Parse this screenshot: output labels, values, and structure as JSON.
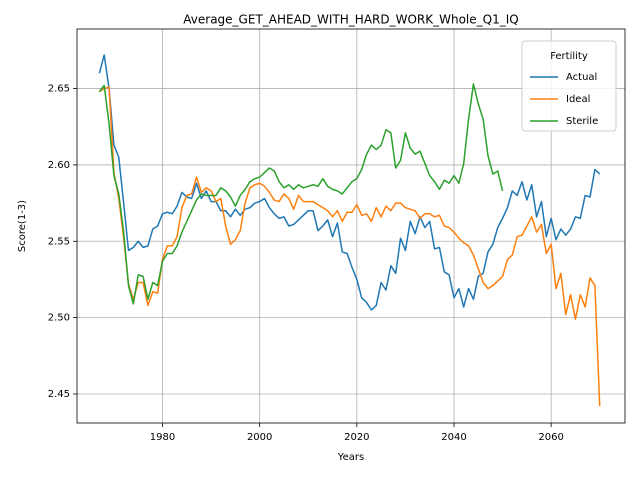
{
  "chart_data": {
    "type": "line",
    "title": "Average_GET_AHEAD_WITH_HARD_WORK_Whole_Q1_IQ",
    "xlabel": "Years",
    "ylabel": "Score(1-3)",
    "x": [
      1967,
      1968,
      1969,
      1970,
      1971,
      1972,
      1973,
      1974,
      1975,
      1976,
      1977,
      1978,
      1979,
      1980,
      1981,
      1982,
      1983,
      1984,
      1985,
      1986,
      1987,
      1988,
      1989,
      1990,
      1991,
      1992,
      1993,
      1994,
      1995,
      1996,
      1997,
      1998,
      1999,
      2000,
      2001,
      2002,
      2003,
      2004,
      2005,
      2006,
      2007,
      2008,
      2009,
      2010,
      2011,
      2012,
      2013,
      2014,
      2015,
      2016,
      2017,
      2018,
      2019,
      2020,
      2021,
      2022,
      2023,
      2024,
      2025,
      2026,
      2027,
      2028,
      2029,
      2030,
      2031,
      2032,
      2033,
      2034,
      2035,
      2036,
      2037,
      2038,
      2039,
      2040,
      2041,
      2042,
      2043,
      2044,
      2045,
      2046,
      2047,
      2048,
      2049,
      2050,
      2051,
      2052,
      2053,
      2054,
      2055,
      2056,
      2057,
      2058,
      2059,
      2060,
      2061,
      2062,
      2063,
      2064,
      2065,
      2066,
      2067,
      2068,
      2069,
      2070
    ],
    "series": [
      {
        "name": "Actual",
        "color": "#1f77b4",
        "values": [
          2.66,
          2.672,
          2.65,
          2.613,
          2.605,
          2.575,
          2.544,
          2.546,
          2.55,
          2.546,
          2.547,
          2.558,
          2.56,
          2.568,
          2.569,
          2.568,
          2.573,
          2.582,
          2.579,
          2.578,
          2.588,
          2.578,
          2.583,
          2.576,
          2.576,
          2.57,
          2.57,
          2.566,
          2.571,
          2.567,
          2.571,
          2.572,
          2.575,
          2.576,
          2.578,
          2.572,
          2.568,
          2.565,
          2.566,
          2.56,
          2.561,
          2.564,
          2.567,
          2.57,
          2.57,
          2.557,
          2.56,
          2.564,
          2.553,
          2.562,
          2.543,
          2.542,
          2.533,
          2.525,
          2.513,
          2.51,
          2.505,
          2.508,
          2.523,
          2.518,
          2.534,
          2.529,
          2.552,
          2.544,
          2.563,
          2.555,
          2.566,
          2.559,
          2.563,
          2.545,
          2.546,
          2.53,
          2.528,
          2.513,
          2.519,
          2.507,
          2.519,
          2.512,
          2.527,
          2.529,
          2.543,
          2.548,
          2.559,
          2.565,
          2.572,
          2.583,
          2.58,
          2.589,
          2.577,
          2.587,
          2.566,
          2.576,
          2.553,
          2.565,
          2.551,
          2.558,
          2.554,
          2.558,
          2.566,
          2.565,
          2.58,
          2.579,
          2.597,
          2.594
        ]
      },
      {
        "name": "Ideal",
        "color": "#ff7f0e",
        "values": [
          2.648,
          2.65,
          2.651,
          2.595,
          2.578,
          2.552,
          2.522,
          2.512,
          2.523,
          2.523,
          2.508,
          2.517,
          2.516,
          2.538,
          2.547,
          2.547,
          2.553,
          2.572,
          2.58,
          2.581,
          2.592,
          2.582,
          2.585,
          2.583,
          2.576,
          2.578,
          2.56,
          2.548,
          2.551,
          2.557,
          2.575,
          2.585,
          2.587,
          2.588,
          2.586,
          2.582,
          2.577,
          2.576,
          2.581,
          2.578,
          2.571,
          2.58,
          2.576,
          2.576,
          2.576,
          2.574,
          2.572,
          2.57,
          2.566,
          2.57,
          2.563,
          2.569,
          2.569,
          2.574,
          2.567,
          2.568,
          2.563,
          2.572,
          2.566,
          2.573,
          2.57,
          2.575,
          2.575,
          2.572,
          2.571,
          2.57,
          2.565,
          2.568,
          2.568,
          2.566,
          2.567,
          2.56,
          2.559,
          2.556,
          2.552,
          2.549,
          2.547,
          2.541,
          2.532,
          2.523,
          2.519,
          2.521,
          2.524,
          2.527,
          2.538,
          2.541,
          2.553,
          2.554,
          2.56,
          2.566,
          2.556,
          2.561,
          2.542,
          2.548,
          2.519,
          2.529,
          2.502,
          2.515,
          2.499,
          2.515,
          2.507,
          2.526,
          2.521,
          2.442
        ]
      },
      {
        "name": "Sterile",
        "color": "#2ca02c",
        "values": [
          2.648,
          2.652,
          2.627,
          2.593,
          2.581,
          2.556,
          2.521,
          2.509,
          2.528,
          2.527,
          2.512,
          2.523,
          2.521,
          2.537,
          2.542,
          2.542,
          2.547,
          2.556,
          2.563,
          2.57,
          2.577,
          2.581,
          2.58,
          2.58,
          2.58,
          2.585,
          2.583,
          2.579,
          2.573,
          2.58,
          2.584,
          2.589,
          2.591,
          2.592,
          2.595,
          2.598,
          2.596,
          2.589,
          2.585,
          2.587,
          2.584,
          2.587,
          2.585,
          2.586,
          2.587,
          2.586,
          2.591,
          2.586,
          2.584,
          2.583,
          2.581,
          2.585,
          2.589,
          2.591,
          2.597,
          2.607,
          2.613,
          2.61,
          2.613,
          2.623,
          2.621,
          2.598,
          2.603,
          2.621,
          2.611,
          2.607,
          2.609,
          2.601,
          2.593,
          2.589,
          2.584,
          2.59,
          2.588,
          2.593,
          2.588,
          2.601,
          2.63,
          2.653,
          2.64,
          2.63,
          2.606,
          2.594,
          2.596,
          2.583,
          null,
          null,
          null,
          null,
          null,
          null,
          null,
          null,
          null,
          null,
          null,
          null,
          null,
          null,
          null,
          null,
          null,
          null,
          null,
          null
        ]
      }
    ],
    "xlim": [
      1962.4,
      2075.2
    ],
    "ylim": [
      2.431,
      2.689
    ],
    "xticks": [
      1980,
      2000,
      2020,
      2040,
      2060
    ],
    "yticks": [
      2.45,
      {
        "value": 2.5,
        "label": "2.50"
      },
      2.55,
      {
        "value": 2.6,
        "label": "2.60"
      },
      2.65
    ],
    "grid": true,
    "legend_title": "Fertility",
    "legend": "upper right"
  }
}
